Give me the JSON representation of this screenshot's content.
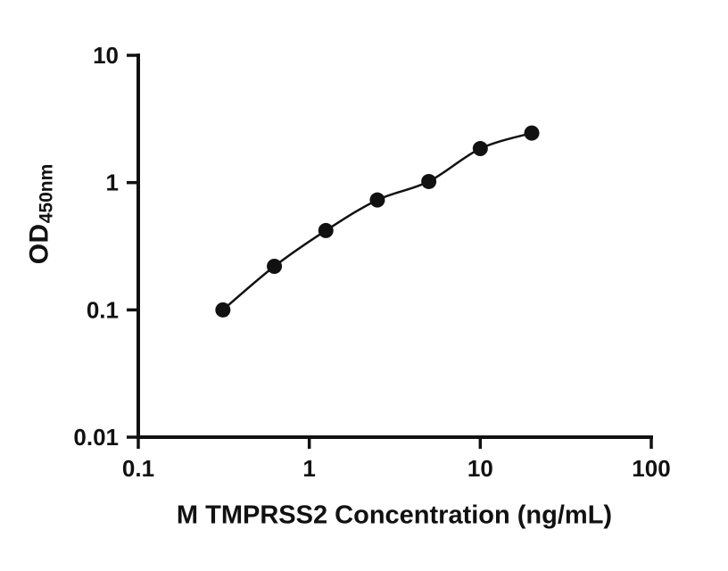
{
  "chart_data": {
    "type": "scatter",
    "title": "",
    "x": [
      0.3125,
      0.625,
      1.25,
      2.5,
      5,
      10,
      20
    ],
    "y": [
      0.1,
      0.22,
      0.42,
      0.73,
      1.02,
      1.85,
      2.45
    ],
    "curve": "smooth-fit-through-points",
    "xlabel": "M TMPRSS2 Concentration (ng/mL)",
    "ylabel_main": "OD",
    "ylabel_sub": "450nm",
    "xscale": "log",
    "yscale": "log",
    "xlim": [
      0.1,
      100
    ],
    "ylim": [
      0.01,
      10
    ],
    "xticks": [
      0.1,
      1,
      10,
      100
    ],
    "xtick_labels": [
      "0.1",
      "1",
      "10",
      "100"
    ],
    "yticks": [
      0.01,
      0.1,
      1,
      10
    ],
    "ytick_labels": [
      "0.01",
      "0.1",
      "1",
      "10"
    ],
    "marker_color": "#111111",
    "line_color": "#111111",
    "axis_color": "#111111",
    "grid": false,
    "legend": false
  }
}
